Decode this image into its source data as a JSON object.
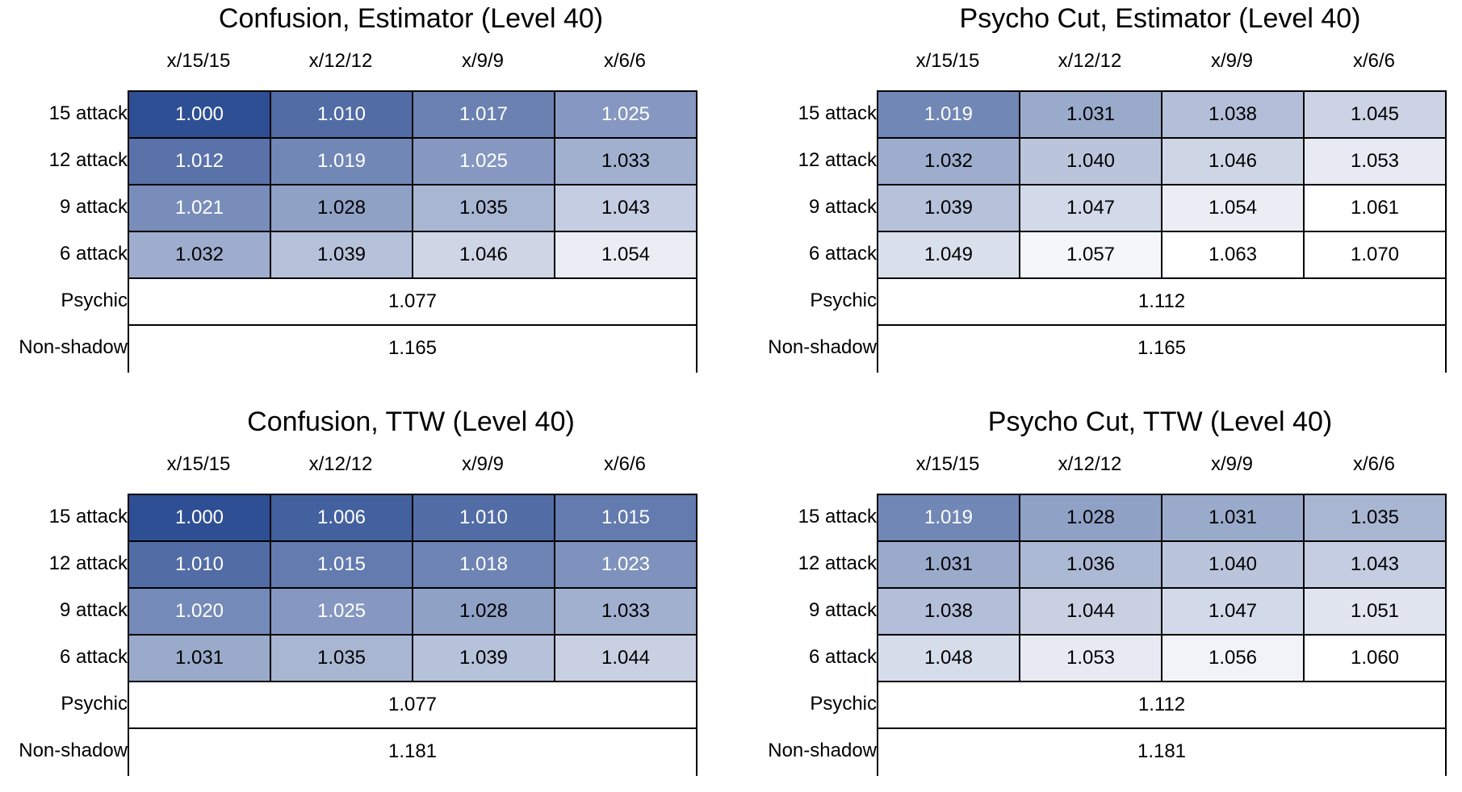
{
  "chart_data": [
    {
      "type": "heatmap",
      "title": "Confusion, Estimator (Level 40)",
      "columns": [
        "x/15/15",
        "x/12/12",
        "x/9/9",
        "x/6/6"
      ],
      "rows": [
        "15 attack",
        "12 attack",
        "9 attack",
        "6 attack"
      ],
      "values": [
        [
          "1.000",
          "1.010",
          "1.017",
          "1.025"
        ],
        [
          "1.012",
          "1.019",
          "1.025",
          "1.033"
        ],
        [
          "1.021",
          "1.028",
          "1.035",
          "1.043"
        ],
        [
          "1.032",
          "1.039",
          "1.046",
          "1.054"
        ]
      ],
      "extra_rows": [
        {
          "label": "Psychic",
          "value": "1.077"
        },
        {
          "label": "Non-shadow",
          "value": "1.165"
        }
      ],
      "color_scale": {
        "min_color": "#2f4f94",
        "max_color": "#ffffff",
        "min_value": 1.0,
        "max_value": 1.06
      }
    },
    {
      "type": "heatmap",
      "title": "Psycho Cut, Estimator (Level 40)",
      "columns": [
        "x/15/15",
        "x/12/12",
        "x/9/9",
        "x/6/6"
      ],
      "rows": [
        "15 attack",
        "12 attack",
        "9 attack",
        "6 attack"
      ],
      "values": [
        [
          "1.019",
          "1.031",
          "1.038",
          "1.045"
        ],
        [
          "1.032",
          "1.040",
          "1.046",
          "1.053"
        ],
        [
          "1.039",
          "1.047",
          "1.054",
          "1.061"
        ],
        [
          "1.049",
          "1.057",
          "1.063",
          "1.070"
        ]
      ],
      "extra_rows": [
        {
          "label": "Psychic",
          "value": "1.112"
        },
        {
          "label": "Non-shadow",
          "value": "1.165"
        }
      ],
      "color_scale": {
        "min_color": "#2f4f94",
        "max_color": "#ffffff",
        "min_value": 1.0,
        "max_value": 1.06
      }
    },
    {
      "type": "heatmap",
      "title": "Confusion, TTW (Level 40)",
      "columns": [
        "x/15/15",
        "x/12/12",
        "x/9/9",
        "x/6/6"
      ],
      "rows": [
        "15 attack",
        "12 attack",
        "9 attack",
        "6 attack"
      ],
      "values": [
        [
          "1.000",
          "1.006",
          "1.010",
          "1.015"
        ],
        [
          "1.010",
          "1.015",
          "1.018",
          "1.023"
        ],
        [
          "1.020",
          "1.025",
          "1.028",
          "1.033"
        ],
        [
          "1.031",
          "1.035",
          "1.039",
          "1.044"
        ]
      ],
      "extra_rows": [
        {
          "label": "Psychic",
          "value": "1.077"
        },
        {
          "label": "Non-shadow",
          "value": "1.181"
        }
      ],
      "color_scale": {
        "min_color": "#2f4f94",
        "max_color": "#ffffff",
        "min_value": 1.0,
        "max_value": 1.06
      }
    },
    {
      "type": "heatmap",
      "title": "Psycho Cut, TTW (Level 40)",
      "columns": [
        "x/15/15",
        "x/12/12",
        "x/9/9",
        "x/6/6"
      ],
      "rows": [
        "15 attack",
        "12 attack",
        "9 attack",
        "6 attack"
      ],
      "values": [
        [
          "1.019",
          "1.028",
          "1.031",
          "1.035"
        ],
        [
          "1.031",
          "1.036",
          "1.040",
          "1.043"
        ],
        [
          "1.038",
          "1.044",
          "1.047",
          "1.051"
        ],
        [
          "1.048",
          "1.053",
          "1.056",
          "1.060"
        ]
      ],
      "extra_rows": [
        {
          "label": "Psychic",
          "value": "1.112"
        },
        {
          "label": "Non-shadow",
          "value": "1.181"
        }
      ],
      "color_scale": {
        "min_color": "#2f4f94",
        "max_color": "#ffffff",
        "min_value": 1.0,
        "max_value": 1.06
      }
    }
  ]
}
